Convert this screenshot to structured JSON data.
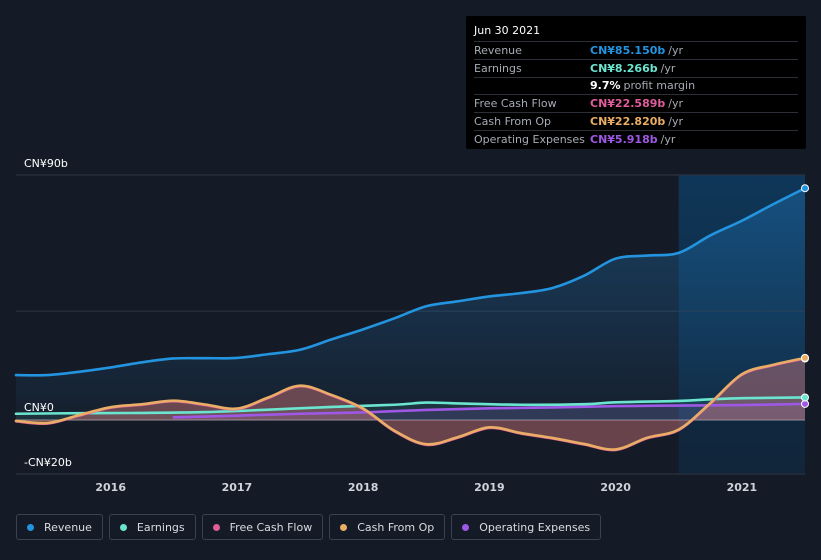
{
  "tooltip": {
    "date": "Jun 30 2021",
    "rows": [
      {
        "label": "Revenue",
        "value": "CN¥85.150b",
        "unit": "/yr",
        "color": "#2394df"
      },
      {
        "label": "Earnings",
        "value": "CN¥8.266b",
        "unit": "/yr",
        "color": "#6ce5d0"
      },
      {
        "label": "",
        "value": "9.7%",
        "unit": "profit margin",
        "color": "#ffffff"
      },
      {
        "label": "Free Cash Flow",
        "value": "CN¥22.589b",
        "unit": "/yr",
        "color": "#e05d9c"
      },
      {
        "label": "Cash From Op",
        "value": "CN¥22.820b",
        "unit": "/yr",
        "color": "#e9ad66"
      },
      {
        "label": "Operating Expenses",
        "value": "CN¥5.918b",
        "unit": "/yr",
        "color": "#9f58e6"
      }
    ]
  },
  "legend": [
    {
      "label": "Revenue",
      "color": "#2394df"
    },
    {
      "label": "Earnings",
      "color": "#6ce5d0"
    },
    {
      "label": "Free Cash Flow",
      "color": "#e05d9c"
    },
    {
      "label": "Cash From Op",
      "color": "#e9ad66"
    },
    {
      "label": "Operating Expenses",
      "color": "#9f58e6"
    }
  ],
  "chart_data": {
    "type": "line",
    "title": "",
    "xlabel": "",
    "ylabel": "",
    "ylim": [
      -20,
      90
    ],
    "y_tick_labels": [
      "CN¥90b",
      "CN¥0",
      "-CN¥20b"
    ],
    "y_ticks": [
      90,
      0,
      -20
    ],
    "x_tick_labels": [
      "2016",
      "2017",
      "2018",
      "2019",
      "2020",
      "2021"
    ],
    "x_ticks": [
      2016,
      2017,
      2018,
      2019,
      2020,
      2021
    ],
    "xlim": [
      2015.25,
      2021.5
    ],
    "forecast_start": 2020.5,
    "series": [
      {
        "name": "Revenue",
        "color": "#2394df",
        "x": [
          2015.25,
          2015.5,
          2015.75,
          2016.0,
          2016.25,
          2016.5,
          2016.75,
          2017.0,
          2017.25,
          2017.5,
          2017.75,
          2018.0,
          2018.25,
          2018.5,
          2018.75,
          2019.0,
          2019.25,
          2019.5,
          2019.75,
          2020.0,
          2020.25,
          2020.5,
          2020.75,
          2021.0,
          2021.25,
          2021.5
        ],
        "values": [
          16.5,
          16.5,
          17.7,
          19.3,
          21.2,
          22.6,
          22.7,
          22.8,
          24.2,
          25.8,
          29.6,
          33.3,
          37.4,
          41.8,
          43.6,
          45.4,
          46.6,
          48.5,
          53.0,
          59.3,
          60.4,
          61.4,
          67.8,
          73.2,
          79.3,
          85.15
        ]
      },
      {
        "name": "Earnings",
        "color": "#6ce5d0",
        "x": [
          2015.25,
          2015.75,
          2016.25,
          2016.75,
          2017.25,
          2017.75,
          2018.25,
          2018.5,
          2018.75,
          2019.25,
          2019.75,
          2020.0,
          2020.5,
          2020.75,
          2021.0,
          2021.5
        ],
        "values": [
          2.3,
          2.5,
          2.6,
          2.9,
          3.8,
          4.8,
          5.6,
          6.4,
          6.1,
          5.6,
          5.8,
          6.5,
          7.0,
          7.6,
          8.0,
          8.27
        ]
      },
      {
        "name": "Free Cash Flow",
        "color": "#e05d9c",
        "x": [
          2015.25,
          2015.5,
          2015.75,
          2016.0,
          2016.25,
          2016.5,
          2016.75,
          2017.0,
          2017.25,
          2017.5,
          2017.75,
          2018.0,
          2018.25,
          2018.5,
          2018.75,
          2019.0,
          2019.25,
          2019.5,
          2019.75,
          2020.0,
          2020.25,
          2020.5,
          2020.75,
          2021.0,
          2021.25,
          2021.5
        ],
        "values": [
          -0.5,
          -1.3,
          1.6,
          4.5,
          5.6,
          6.9,
          5.5,
          4.0,
          8.1,
          12.4,
          9.0,
          4.0,
          -4.2,
          -9.1,
          -6.5,
          -2.9,
          -5.0,
          -6.8,
          -9.0,
          -11.0,
          -6.7,
          -3.7,
          6.0,
          16.6,
          20.1,
          22.59
        ]
      },
      {
        "name": "Cash From Op",
        "color": "#e9ad66",
        "x": [
          2015.25,
          2015.5,
          2015.75,
          2016.0,
          2016.25,
          2016.5,
          2016.75,
          2017.0,
          2017.25,
          2017.5,
          2017.75,
          2018.0,
          2018.25,
          2018.5,
          2018.75,
          2019.0,
          2019.25,
          2019.5,
          2019.75,
          2020.0,
          2020.25,
          2020.5,
          2020.75,
          2021.0,
          2021.25,
          2021.5
        ],
        "values": [
          -0.3,
          -1.1,
          1.8,
          4.7,
          5.8,
          7.1,
          5.7,
          4.2,
          8.3,
          12.6,
          9.2,
          4.2,
          -4.0,
          -8.9,
          -6.3,
          -2.7,
          -4.8,
          -6.6,
          -8.8,
          -10.8,
          -6.5,
          -3.5,
          6.2,
          16.8,
          20.3,
          22.82
        ]
      },
      {
        "name": "Operating Expenses",
        "color": "#9f58e6",
        "x": [
          2016.5,
          2017.0,
          2017.5,
          2018.0,
          2018.5,
          2019.0,
          2019.5,
          2020.0,
          2020.5,
          2021.0,
          2021.5
        ],
        "values": [
          1.0,
          1.6,
          2.3,
          2.8,
          3.7,
          4.3,
          4.6,
          5.1,
          5.3,
          5.5,
          5.92
        ]
      }
    ]
  }
}
